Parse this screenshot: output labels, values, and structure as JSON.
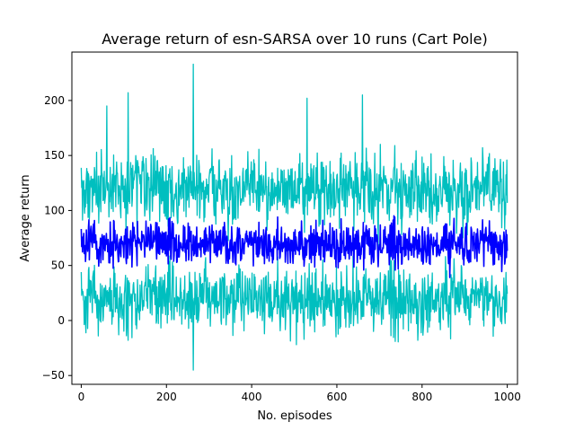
{
  "chart_data": {
    "type": "line",
    "title": "Average return of esn-SARSA over 10 runs (Cart Pole)",
    "xlabel": "No. episodes",
    "ylabel": "Average return",
    "xlim": [
      -22,
      1024
    ],
    "ylim": [
      -58,
      244
    ],
    "xticks": [
      0,
      200,
      400,
      600,
      800,
      1000
    ],
    "yticks": [
      -50,
      0,
      50,
      100,
      150,
      200
    ],
    "grid": false,
    "legend": "none",
    "series": [
      {
        "role": "band",
        "color": "#00bfbf",
        "x_start": 0,
        "x_end": 1000,
        "n_points": 1001,
        "mean_level": 70,
        "upper_typical_range": [
          100,
          170
        ],
        "lower_typical_range": [
          5,
          45
        ],
        "spikes": [
          {
            "x": 110,
            "y": 207
          },
          {
            "x": 263,
            "y": 233
          },
          {
            "x": 263,
            "y": -45
          },
          {
            "x": 60,
            "y": 195
          },
          {
            "x": 660,
            "y": 205
          },
          {
            "x": 530,
            "y": 202
          },
          {
            "x": 505,
            "y": -22
          },
          {
            "x": 790,
            "y": -18
          },
          {
            "x": 40,
            "y": -14
          },
          {
            "x": 110,
            "y": -18
          }
        ]
      },
      {
        "role": "mean",
        "color": "#0000ff",
        "x_start": 0,
        "x_end": 1000,
        "n_points": 1001,
        "typical_range": [
          35,
          125
        ]
      }
    ]
  }
}
